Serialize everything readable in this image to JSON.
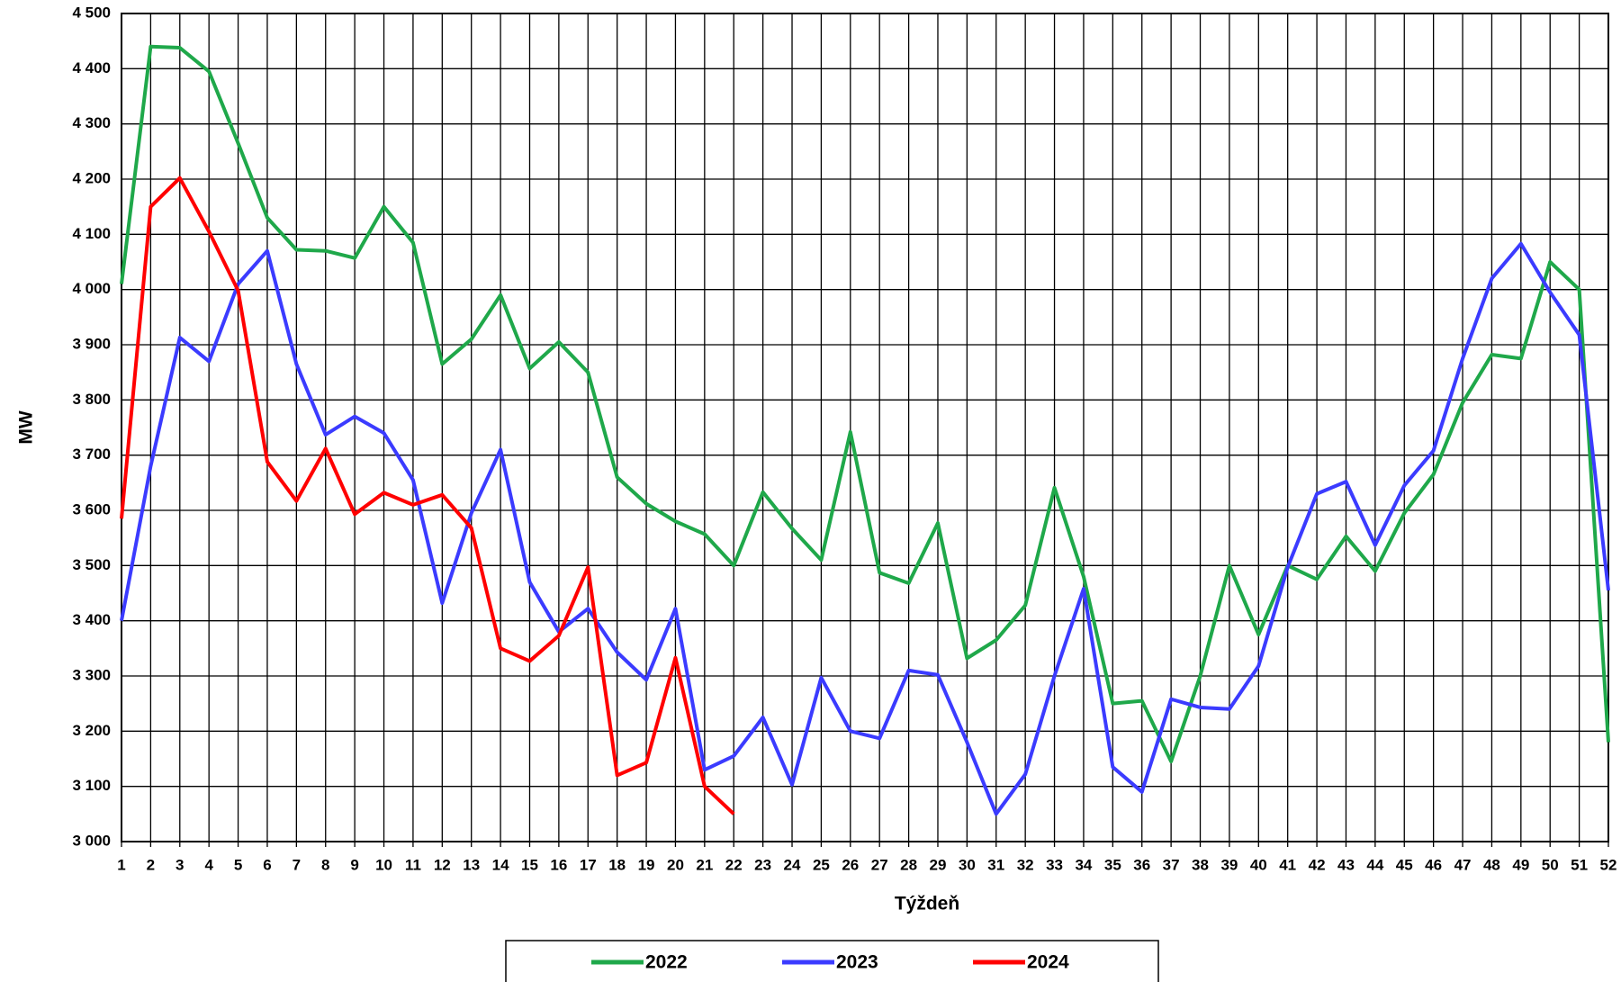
{
  "chart_data": {
    "type": "line",
    "x_label": "Týždeň",
    "y_label": "MW",
    "x": [
      1,
      2,
      3,
      4,
      5,
      6,
      7,
      8,
      9,
      10,
      11,
      12,
      13,
      14,
      15,
      16,
      17,
      18,
      19,
      20,
      21,
      22,
      23,
      24,
      25,
      26,
      27,
      28,
      29,
      30,
      31,
      32,
      33,
      34,
      35,
      36,
      37,
      38,
      39,
      40,
      41,
      42,
      43,
      44,
      45,
      46,
      47,
      48,
      49,
      50,
      51,
      52
    ],
    "xlim": [
      1,
      52
    ],
    "xticks": [
      1,
      2,
      3,
      4,
      5,
      6,
      7,
      8,
      9,
      10,
      11,
      12,
      13,
      14,
      15,
      16,
      17,
      18,
      19,
      20,
      21,
      22,
      23,
      24,
      25,
      26,
      27,
      28,
      29,
      30,
      31,
      32,
      33,
      34,
      35,
      36,
      37,
      38,
      39,
      40,
      41,
      42,
      43,
      44,
      45,
      46,
      47,
      48,
      49,
      50,
      51,
      52
    ],
    "ylim": [
      3000,
      4500
    ],
    "yticks": [
      {
        "value": 3000,
        "label": "3 000"
      },
      {
        "value": 3100,
        "label": "3 100"
      },
      {
        "value": 3200,
        "label": "3 200"
      },
      {
        "value": 3300,
        "label": "3 300"
      },
      {
        "value": 3400,
        "label": "3 400"
      },
      {
        "value": 3500,
        "label": "3 500"
      },
      {
        "value": 3600,
        "label": "3 600"
      },
      {
        "value": 3700,
        "label": "3 700"
      },
      {
        "value": 3800,
        "label": "3 800"
      },
      {
        "value": 3900,
        "label": "3 900"
      },
      {
        "value": 4000,
        "label": "4 000"
      },
      {
        "value": 4100,
        "label": "4 100"
      },
      {
        "value": 4200,
        "label": "4 200"
      },
      {
        "value": 4300,
        "label": "4 300"
      },
      {
        "value": 4400,
        "label": "4 400"
      },
      {
        "value": 4500,
        "label": "4 500"
      }
    ],
    "grid": true,
    "legend": "bottom",
    "series": [
      {
        "name": "2022",
        "color": "#1fa84a",
        "values": [
          4010,
          4440,
          4438,
          4395,
          4265,
          4130,
          4072,
          4070,
          4057,
          4150,
          4085,
          3865,
          3910,
          3990,
          3857,
          3905,
          3850,
          3660,
          3612,
          3580,
          3557,
          3500,
          3633,
          3567,
          3510,
          3742,
          3487,
          3468,
          3577,
          3332,
          3365,
          3428,
          3641,
          3480,
          3250,
          3255,
          3145,
          3300,
          3500,
          3375,
          3500,
          3475,
          3553,
          3490,
          3595,
          3665,
          3795,
          3882,
          3875,
          4050,
          4000,
          3180
        ]
      },
      {
        "name": "2023",
        "color": "#3b3bff",
        "values": [
          3400,
          3680,
          3913,
          3870,
          4010,
          4070,
          3865,
          3737,
          3770,
          3740,
          3655,
          3432,
          3595,
          3710,
          3470,
          3380,
          3422,
          3343,
          3293,
          3422,
          3130,
          3155,
          3225,
          3103,
          3297,
          3200,
          3187,
          3310,
          3302,
          3180,
          3050,
          3122,
          3300,
          3458,
          3135,
          3090,
          3258,
          3243,
          3240,
          3318,
          3497,
          3630,
          3652,
          3537,
          3645,
          3708,
          3875,
          4020,
          4083,
          3995,
          3918,
          3455
        ]
      },
      {
        "name": "2024",
        "color": "#ff0000",
        "values": [
          3585,
          4150,
          4202,
          4105,
          3998,
          3688,
          3617,
          3712,
          3593,
          3632,
          3610,
          3628,
          3568,
          3350,
          3327,
          3373,
          3497,
          3120,
          3143,
          3333,
          3100,
          3050,
          null,
          null,
          null,
          null,
          null,
          null,
          null,
          null,
          null,
          null,
          null,
          null,
          null,
          null,
          null,
          null,
          null,
          null,
          null,
          null,
          null,
          null,
          null,
          null,
          null,
          null,
          null,
          null,
          null,
          null
        ]
      }
    ]
  }
}
